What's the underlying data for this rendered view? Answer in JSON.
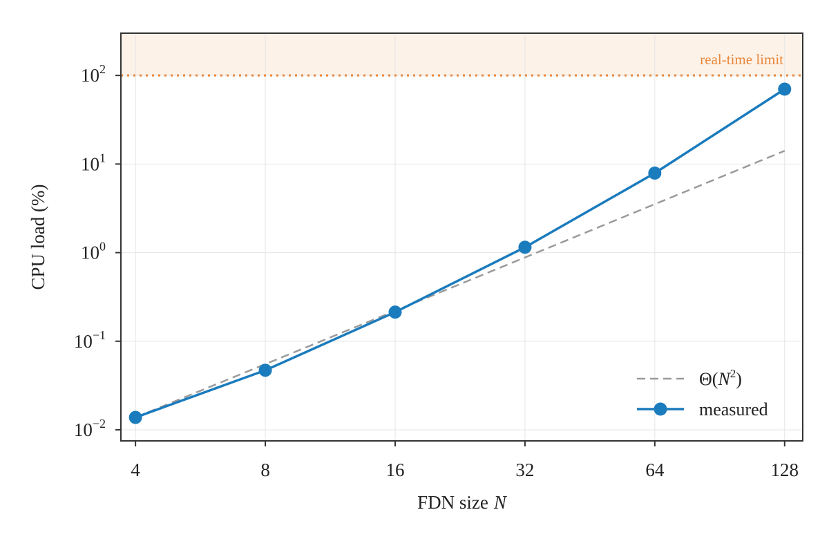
{
  "chart_data": {
    "type": "line",
    "xlabel": "FDN size",
    "xlabel_var": "N",
    "ylabel": "CPU load (%)",
    "x_scale": "log2",
    "y_scale": "log10",
    "xlim": [
      3.7,
      141
    ],
    "ylim": [
      0.0075,
      300
    ],
    "x_ticks": [
      4,
      8,
      16,
      32,
      64,
      128
    ],
    "x_tick_labels": [
      "4",
      "8",
      "16",
      "32",
      "64",
      "128"
    ],
    "y_ticks": [
      0.01,
      0.1,
      1,
      10,
      100
    ],
    "y_tick_labels": [
      {
        "base": "10",
        "exp": "−2"
      },
      {
        "base": "10",
        "exp": "−1"
      },
      {
        "base": "10",
        "exp": "0"
      },
      {
        "base": "10",
        "exp": "1"
      },
      {
        "base": "10",
        "exp": "2"
      }
    ],
    "grid": true,
    "series": [
      {
        "name": "measured",
        "style": "solid-marker",
        "color": "#1a7bbd",
        "x": [
          4,
          8,
          16,
          32,
          64,
          128
        ],
        "y": [
          0.0138,
          0.047,
          0.213,
          1.15,
          7.9,
          70
        ]
      },
      {
        "name": "Θ(N²)",
        "legend_prefix": "Θ(",
        "legend_var": "N",
        "legend_exp": "2",
        "legend_suffix": ")",
        "style": "dashed",
        "color": "#9a9a9a",
        "x": [
          4,
          128
        ],
        "y": [
          0.0138,
          14.1
        ]
      }
    ],
    "annotations": [
      {
        "text": "real-time limit",
        "y": 100,
        "color": "#e8873a",
        "shade_color": "#fdf2e8"
      }
    ],
    "legend_position": "lower-right"
  }
}
